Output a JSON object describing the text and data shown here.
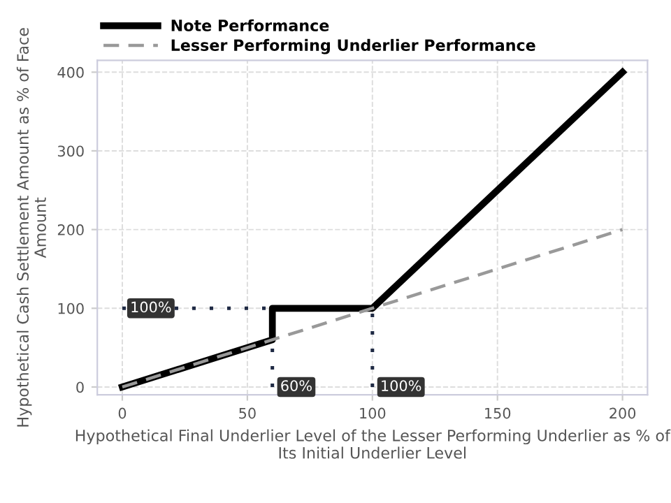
{
  "chart_data": {
    "type": "line",
    "xlabel": "Hypothetical Final Underlier Level of the Lesser Performing Underlier as % of Its Initial Underlier Level",
    "ylabel": "Hypothetical Cash Settlement Amount as % of Face Amount",
    "series": [
      {
        "x": [
          0,
          60
        ],
        "values": [
          100,
          100
        ],
        "color": "#1f2a44",
        "line_style": "dotted"
      },
      {
        "x": [
          60,
          60
        ],
        "values": [
          0,
          100
        ],
        "color": "#1f2a44",
        "line_style": "dotted"
      },
      {
        "x": [
          100,
          100
        ],
        "values": [
          0,
          100
        ],
        "color": "#1f2a44",
        "line_style": "dotted"
      },
      {
        "name": "Note Performance",
        "x": [
          0,
          60,
          60,
          100,
          200
        ],
        "values": [
          0,
          60,
          100,
          100,
          400
        ],
        "color": "#000000",
        "line_style": "solid"
      },
      {
        "name": "Lesser Performing Underlier Performance",
        "x": [
          0,
          200
        ],
        "values": [
          0,
          200
        ],
        "color": "#999999",
        "line_style": "dashed"
      }
    ],
    "annotations": [
      {
        "text": "100%",
        "x": 0,
        "y": 100
      },
      {
        "text": "60%",
        "x": 60,
        "y": 0
      },
      {
        "text": "100%",
        "x": 100,
        "y": 0
      }
    ],
    "xlim": [
      -10,
      210
    ],
    "ylim": [
      -10,
      415
    ],
    "xticks": [
      0,
      50,
      100,
      150,
      200
    ],
    "yticks": [
      0,
      100,
      200,
      300,
      400
    ],
    "grid": true,
    "legend": "top left",
    "marker": "none"
  }
}
